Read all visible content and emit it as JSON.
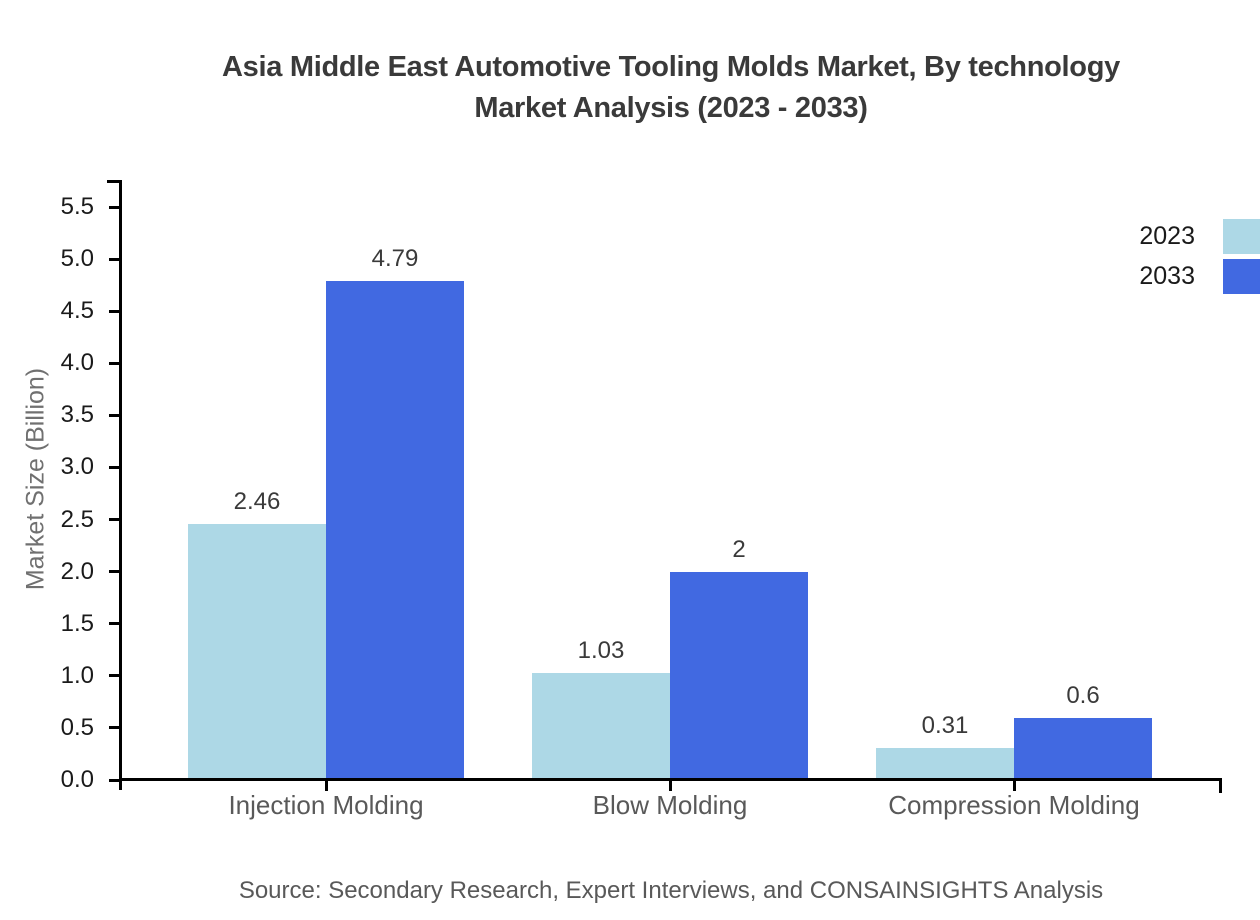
{
  "chart_data": {
    "type": "bar",
    "title": "Asia Middle East Automotive Tooling Molds Market, By technology Market Analysis (2023 - 2033)",
    "title_lines": [
      "Asia Middle East Automotive Tooling Molds Market, By technology",
      "Market Analysis (2023 - 2033)"
    ],
    "categories": [
      "Injection Molding",
      "Blow Molding",
      "Compression Molding"
    ],
    "series": [
      {
        "name": "2023",
        "color": "#ADD8E6",
        "values": [
          2.46,
          1.03,
          0.31
        ]
      },
      {
        "name": "2033",
        "color": "#4169E1",
        "values": [
          4.79,
          2,
          0.6
        ]
      }
    ],
    "bar_value_labels": [
      "2.46",
      "4.79",
      "1.03",
      "2",
      "0.31",
      "0.6"
    ],
    "xlabel": "",
    "ylabel": "Market Size (Billion)",
    "ylim": [
      0,
      5.5
    ],
    "ytick_step": 0.5,
    "ytick_labels": [
      "0.0",
      "0.5",
      "1.0",
      "1.5",
      "2.0",
      "2.5",
      "3.0",
      "3.5",
      "4.0",
      "4.5",
      "5.0",
      "5.5"
    ],
    "grid": false,
    "legend_position": "upper right",
    "legend_entries": [
      "2023",
      "2033"
    ]
  },
  "source_note": "Source: Secondary Research, Expert Interviews, and CONSAINSIGHTS Analysis",
  "colors": {
    "series_2023": "#ADD8E6",
    "series_2033": "#4169E1",
    "axis": "#000000",
    "title_text": "#3a3a3a",
    "gray_text": "#595959",
    "ylabel_text": "#707070",
    "background": "#ffffff"
  }
}
